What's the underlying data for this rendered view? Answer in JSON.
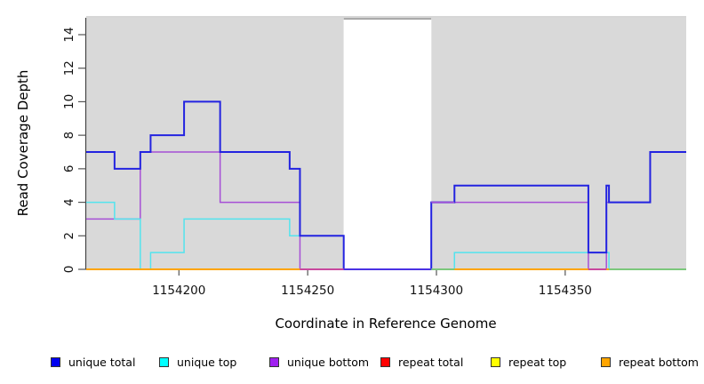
{
  "chart_data": {
    "type": "line",
    "subtype": "step",
    "title": "",
    "xlabel": "Coordinate in Reference Genome",
    "ylabel": "Read Coverage Depth",
    "xlim": [
      1154164,
      1154397
    ],
    "ylim": [
      0,
      15
    ],
    "x_ticks": [
      1154200,
      1154250,
      1154300,
      1154350
    ],
    "y_ticks": [
      0,
      2,
      4,
      6,
      8,
      10,
      12,
      14
    ],
    "grid": false,
    "legend_position": "bottom",
    "background_regions": [
      {
        "name": "shaded-region-left",
        "x1": 1154164,
        "x2": 1154264,
        "color": "#D9D9D9"
      },
      {
        "name": "shaded-region-right",
        "x1": 1154298,
        "x2": 1154397,
        "color": "#D9D9D9"
      },
      {
        "name": "gap-region",
        "x1": 1154264,
        "x2": 1154298,
        "color": "#FFFFFF"
      }
    ],
    "series": [
      {
        "name": "repeat total",
        "color": "#EE2222",
        "width": 1.5,
        "steps": [
          [
            1154164,
            0
          ]
        ]
      },
      {
        "name": "repeat top",
        "color": "#FFFF00",
        "width": 1.5,
        "steps": [
          [
            1154164,
            0
          ]
        ]
      },
      {
        "name": "repeat bottom",
        "color": "#FFA500",
        "width": 1.8,
        "steps": [
          [
            1154164,
            0
          ]
        ]
      },
      {
        "name": "unique bottom",
        "color": "#A64FD6",
        "width": 1.5,
        "steps": [
          [
            1154164,
            3
          ],
          [
            1154185,
            7
          ],
          [
            1154216,
            4
          ],
          [
            1154247,
            0
          ],
          [
            1154298,
            4
          ],
          [
            1154359,
            0
          ],
          [
            1154366,
            4
          ],
          [
            1154383,
            7
          ]
        ]
      },
      {
        "name": "unique top",
        "color": "#53E4EE",
        "width": 1.5,
        "steps": [
          [
            1154164,
            4
          ],
          [
            1154175,
            3
          ],
          [
            1154185,
            0
          ],
          [
            1154189,
            1
          ],
          [
            1154202,
            3
          ],
          [
            1154243,
            2
          ],
          [
            1154264,
            0
          ],
          [
            1154307,
            1
          ],
          [
            1154367,
            0
          ]
        ]
      },
      {
        "name": "unique total",
        "color": "#2323E0",
        "width": 2,
        "steps": [
          [
            1154164,
            7
          ],
          [
            1154175,
            6
          ],
          [
            1154185,
            7
          ],
          [
            1154189,
            8
          ],
          [
            1154202,
            10
          ],
          [
            1154216,
            7
          ],
          [
            1154243,
            6
          ],
          [
            1154247,
            2
          ],
          [
            1154264,
            0
          ],
          [
            1154298,
            4
          ],
          [
            1154307,
            5
          ],
          [
            1154359,
            1
          ],
          [
            1154366,
            5
          ],
          [
            1154367,
            4
          ],
          [
            1154383,
            7
          ]
        ]
      }
    ],
    "overlays": [
      {
        "name": "gap-top-border",
        "x1": 1154264,
        "x2": 1154298,
        "v": 14.95,
        "color": "#8A8A8A",
        "width": 1.5
      },
      {
        "name": "unique-bottom-over-total",
        "x1": 1154298,
        "x2": 1154307,
        "v": 4,
        "color": "#A64FD6",
        "width": 1.5
      },
      {
        "name": "baseline-orange-1",
        "x1": 1154164,
        "x2": 1154247,
        "v": 0,
        "color": "#FFA500",
        "width": 2
      },
      {
        "name": "baseline-magenta-1",
        "x1": 1154247,
        "x2": 1154264,
        "v": 0,
        "color": "#C9489E",
        "width": 2
      },
      {
        "name": "baseline-blueviolet",
        "x1": 1154264,
        "x2": 1154298,
        "v": 0,
        "color": "#4B32E4",
        "width": 2
      },
      {
        "name": "baseline-green-1",
        "x1": 1154298,
        "x2": 1154307,
        "v": 0,
        "color": "#7CC87C",
        "width": 2
      },
      {
        "name": "baseline-orange-2",
        "x1": 1154307,
        "x2": 1154359,
        "v": 0,
        "color": "#FFA500",
        "width": 2
      },
      {
        "name": "baseline-magenta-2",
        "x1": 1154359,
        "x2": 1154366,
        "v": 0,
        "color": "#C9489E",
        "width": 2
      },
      {
        "name": "baseline-orange-3",
        "x1": 1154366,
        "x2": 1154367,
        "v": 0,
        "color": "#FFA500",
        "width": 2
      },
      {
        "name": "baseline-green-2",
        "x1": 1154367,
        "x2": 1154397,
        "v": 0,
        "color": "#7CC87C",
        "width": 2
      }
    ]
  },
  "legend": {
    "items": [
      {
        "label": "unique total",
        "color": "#0000F0"
      },
      {
        "label": "unique top",
        "color": "#00FFFF"
      },
      {
        "label": "unique bottom",
        "color": "#A020F0"
      },
      {
        "label": "repeat total",
        "color": "#FF0000"
      },
      {
        "label": "repeat top",
        "color": "#FFFF00"
      },
      {
        "label": "repeat bottom",
        "color": "#FFA500"
      }
    ]
  }
}
